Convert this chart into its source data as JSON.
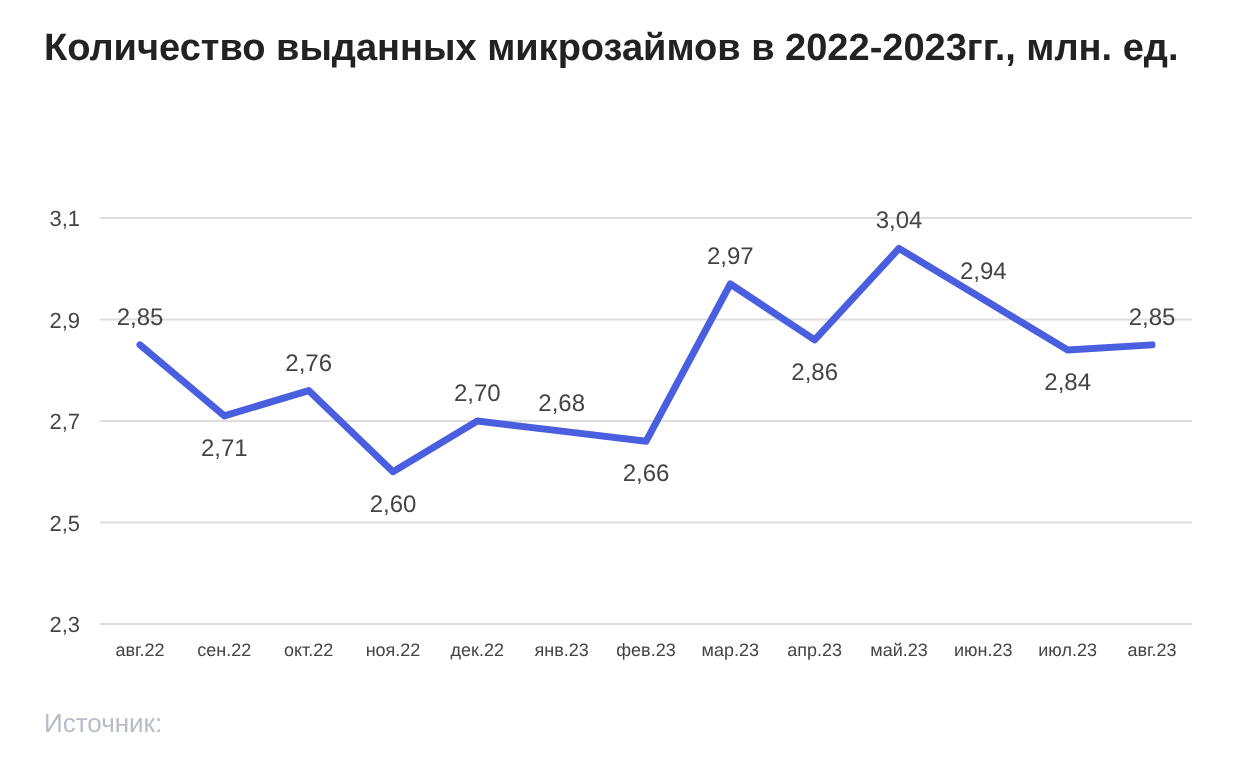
{
  "chart_data": {
    "type": "line",
    "title": "Количество выданных микрозаймов в 2022-2023гг., млн. ед.",
    "categories": [
      "авг.22",
      "сен.22",
      "окт.22",
      "ноя.22",
      "дек.22",
      "янв.23",
      "фев.23",
      "мар.23",
      "апр.23",
      "май.23",
      "июн.23",
      "июл.23",
      "авг.23"
    ],
    "series": [
      {
        "color": "#4a5fe0",
        "values": [
          2.85,
          2.71,
          2.76,
          2.6,
          2.7,
          2.68,
          2.66,
          2.97,
          2.86,
          3.04,
          2.94,
          2.84,
          2.85
        ],
        "value_labels": [
          "2,85",
          "2,71",
          "2,76",
          "2,60",
          "2,70",
          "2,68",
          "2,66",
          "2,97",
          "2,86",
          "3,04",
          "2,94",
          "2,84",
          "2,85"
        ]
      }
    ],
    "ylim": [
      2.3,
      3.1
    ],
    "yticks": [
      {
        "value": 2.3,
        "label": "2,3"
      },
      {
        "value": 2.5,
        "label": "2,5"
      },
      {
        "value": 2.7,
        "label": "2,7"
      },
      {
        "value": 2.9,
        "label": "2,9"
      },
      {
        "value": 3.1,
        "label": "3,1"
      }
    ],
    "grid": "y",
    "marker": "none",
    "line_style": "solid",
    "annotations": [
      "Источник:"
    ]
  }
}
